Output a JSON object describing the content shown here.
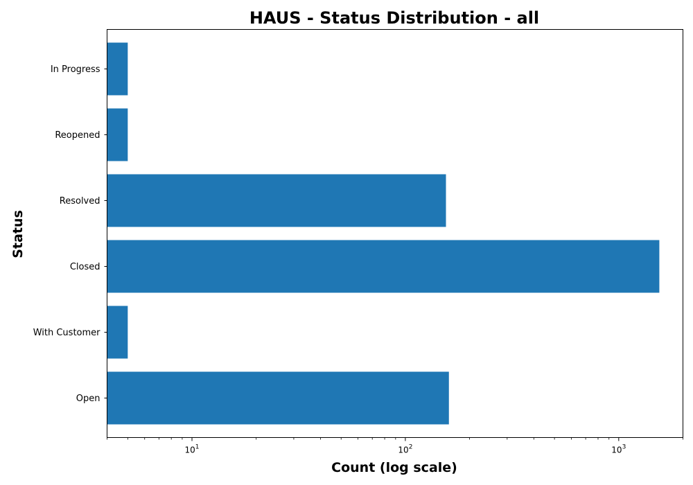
{
  "chart_data": {
    "type": "bar",
    "orientation": "horizontal",
    "title": "HAUS - Status Distribution - all",
    "xlabel": "Count (log scale)",
    "ylabel": "Status",
    "x_scale": "log",
    "xlim": [
      4,
      2000
    ],
    "x_ticks": [
      {
        "value": 10,
        "base": "10",
        "exp": "1"
      },
      {
        "value": 100,
        "base": "10",
        "exp": "2"
      },
      {
        "value": 1000,
        "base": "10",
        "exp": "3"
      }
    ],
    "categories": [
      "Open",
      "With Customer",
      "Closed",
      "Resolved",
      "Reopened",
      "In Progress"
    ],
    "values": [
      160,
      5,
      1550,
      155,
      5,
      5
    ],
    "bar_color": "#1f77b4",
    "grid": false,
    "legend": "none"
  }
}
